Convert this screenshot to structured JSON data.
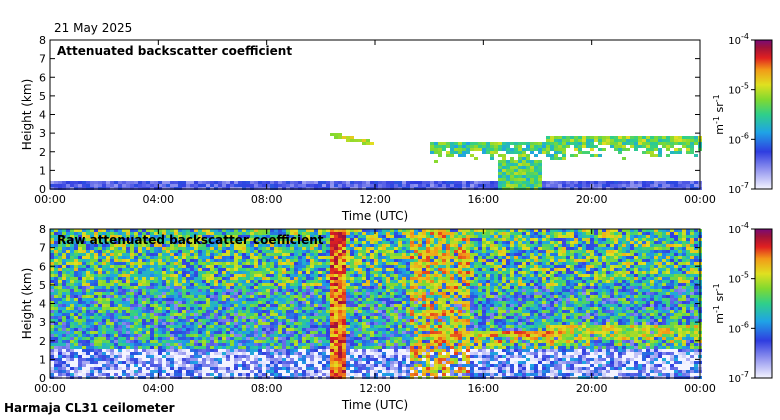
{
  "header": {
    "date": "21 May 2025"
  },
  "footer": {
    "instrument": "Harmaja CL31 ceilometer"
  },
  "chart_data": [
    {
      "type": "heatmap",
      "title": "Attenuated backscatter coefficient",
      "xlabel": "Time (UTC)",
      "ylabel": "Height (km)",
      "xticks": [
        "00:00",
        "04:00",
        "08:00",
        "12:00",
        "16:00",
        "20:00",
        "00:00"
      ],
      "xlim_hours": [
        0,
        24
      ],
      "yticks": [
        0,
        1,
        2,
        3,
        4,
        5,
        6,
        7,
        8
      ],
      "ylim_km": [
        0,
        8
      ],
      "colorbar": {
        "label": "m⁻¹ sr⁻¹",
        "label_parts": [
          "m",
          "-1",
          "sr",
          "-1"
        ],
        "ticks": [
          {
            "base": "10",
            "exp": "-4",
            "log": -4
          },
          {
            "base": "10",
            "exp": "-5",
            "log": -5
          },
          {
            "base": "10",
            "exp": "-6",
            "log": -6
          },
          {
            "base": "10",
            "exp": "-7",
            "log": -7
          }
        ],
        "log_range": [
          -7,
          -4
        ]
      },
      "features": [
        {
          "name": "boundary layer",
          "t_start": 0,
          "t_end": 24,
          "h_top_km": 0.35,
          "level": -6.4
        },
        {
          "name": "cloud streak",
          "t_start": 10.4,
          "t_end": 11.9,
          "h_start_km": 2.9,
          "h_end_km": 2.45,
          "level": -5.0
        },
        {
          "name": "cloud layer",
          "t_start": 14.0,
          "t_end": 19.0,
          "h_top_km": 2.6,
          "level": -5.6
        },
        {
          "name": "precipitation",
          "t_start": 16.5,
          "t_end": 18.1,
          "h_top_km": 1.6,
          "level": -5.4
        },
        {
          "name": "cloud layer",
          "t_start": 18.3,
          "t_end": 24,
          "h_top_km": 2.8,
          "level": -5.5
        }
      ]
    },
    {
      "type": "heatmap",
      "title": "Raw attenuated backscatter coefficient",
      "xlabel": "Time (UTC)",
      "ylabel": "Height (km)",
      "xticks": [
        "00:00",
        "04:00",
        "08:00",
        "12:00",
        "16:00",
        "20:00",
        "00:00"
      ],
      "xlim_hours": [
        0,
        24
      ],
      "yticks": [
        0,
        1,
        2,
        3,
        4,
        5,
        6,
        7,
        8
      ],
      "ylim_km": [
        0,
        8
      ],
      "colorbar": {
        "label": "m⁻¹ sr⁻¹",
        "label_parts": [
          "m",
          "-1",
          "sr",
          "-1"
        ],
        "ticks": [
          {
            "base": "10",
            "exp": "-4",
            "log": -4
          },
          {
            "base": "10",
            "exp": "-5",
            "log": -5
          },
          {
            "base": "10",
            "exp": "-6",
            "log": -6
          },
          {
            "base": "10",
            "exp": "-7",
            "log": -7
          }
        ],
        "log_range": [
          -7,
          -4
        ]
      },
      "features": [
        {
          "name": "noise background",
          "t_start": 0,
          "t_end": 24,
          "h_top_km": 8,
          "level": -5.8
        },
        {
          "name": "strong noise column",
          "t_start": 10.4,
          "t_end": 10.9,
          "h_top_km": 8,
          "level": -4.5
        },
        {
          "name": "strong noise region",
          "t_start": 13.3,
          "t_end": 15.5,
          "h_top_km": 8,
          "level": -4.8
        },
        {
          "name": "cloud layer",
          "t_start": 14.0,
          "t_end": 19.0,
          "h_top_km": 2.6,
          "level": -5.0
        },
        {
          "name": "cloud layer",
          "t_start": 18.3,
          "t_end": 24,
          "h_top_km": 2.8,
          "level": -5.2
        }
      ]
    }
  ]
}
